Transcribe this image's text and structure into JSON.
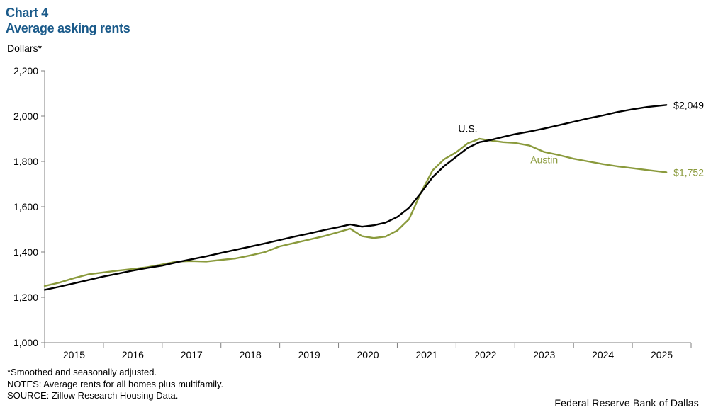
{
  "header": {
    "chart_number": "Chart 4",
    "title": "Average asking rents",
    "unit_label": "Dollars*"
  },
  "footer": {
    "note1": "*Smoothed and seasonally adjusted.",
    "note2": "NOTES: Average rents for all homes plus multifamily.",
    "note3": "SOURCE: Zillow Research Housing Data.",
    "credit": "Federal Reserve Bank of Dallas"
  },
  "chart_data": {
    "type": "line",
    "title": "Average asking rents",
    "ylabel": "Dollars*",
    "ylim": [
      1000,
      2200
    ],
    "yticks": [
      1000,
      1200,
      1400,
      1600,
      1800,
      2000,
      2200
    ],
    "ytick_labels": [
      "1,000",
      "1,200",
      "1,400",
      "1,600",
      "1,800",
      "2,000",
      "2,200"
    ],
    "xlim": [
      2015.0,
      2026.0
    ],
    "xtick_labels": [
      "2015",
      "2016",
      "2017",
      "2018",
      "2019",
      "2020",
      "2021",
      "2022",
      "2023",
      "2024",
      "2025"
    ],
    "grid": false,
    "colors": {
      "us": "#000000",
      "austin": "#8a9a3c",
      "title": "#1a5a8a",
      "axis": "#7f7f7f"
    },
    "series": [
      {
        "name": "U.S.",
        "end_label": "$2,049",
        "x": [
          2015.0,
          2015.25,
          2015.5,
          2015.75,
          2016.0,
          2016.25,
          2016.5,
          2016.75,
          2017.0,
          2017.25,
          2017.5,
          2017.75,
          2018.0,
          2018.25,
          2018.5,
          2018.75,
          2019.0,
          2019.25,
          2019.5,
          2019.75,
          2020.0,
          2020.2,
          2020.4,
          2020.6,
          2020.8,
          2021.0,
          2021.2,
          2021.4,
          2021.6,
          2021.8,
          2022.0,
          2022.2,
          2022.4,
          2022.6,
          2022.8,
          2023.0,
          2023.25,
          2023.5,
          2023.75,
          2024.0,
          2024.25,
          2024.5,
          2024.75,
          2025.0,
          2025.25,
          2025.58
        ],
        "values": [
          1233,
          1247,
          1262,
          1277,
          1292,
          1305,
          1318,
          1330,
          1340,
          1355,
          1368,
          1381,
          1396,
          1410,
          1424,
          1438,
          1453,
          1468,
          1482,
          1497,
          1510,
          1522,
          1512,
          1518,
          1530,
          1555,
          1595,
          1660,
          1730,
          1780,
          1820,
          1860,
          1885,
          1895,
          1908,
          1920,
          1932,
          1945,
          1960,
          1975,
          1990,
          2003,
          2018,
          2030,
          2040,
          2049
        ]
      },
      {
        "name": "Austin",
        "end_label": "$1,752",
        "x": [
          2015.0,
          2015.25,
          2015.5,
          2015.75,
          2016.0,
          2016.25,
          2016.5,
          2016.75,
          2017.0,
          2017.25,
          2017.5,
          2017.75,
          2018.0,
          2018.25,
          2018.5,
          2018.75,
          2019.0,
          2019.25,
          2019.5,
          2019.75,
          2020.0,
          2020.2,
          2020.4,
          2020.6,
          2020.8,
          2021.0,
          2021.2,
          2021.4,
          2021.6,
          2021.8,
          2022.0,
          2022.2,
          2022.4,
          2022.6,
          2022.8,
          2023.0,
          2023.25,
          2023.5,
          2023.75,
          2024.0,
          2024.25,
          2024.5,
          2024.75,
          2025.0,
          2025.25,
          2025.58
        ],
        "values": [
          1250,
          1265,
          1285,
          1302,
          1310,
          1318,
          1325,
          1333,
          1345,
          1358,
          1360,
          1358,
          1365,
          1372,
          1385,
          1400,
          1425,
          1440,
          1455,
          1470,
          1488,
          1503,
          1470,
          1462,
          1468,
          1495,
          1545,
          1660,
          1760,
          1810,
          1840,
          1880,
          1900,
          1892,
          1885,
          1882,
          1870,
          1842,
          1828,
          1812,
          1800,
          1788,
          1778,
          1770,
          1762,
          1752
        ]
      }
    ],
    "annotations": [
      {
        "text": "U.S.",
        "series": "U.S."
      },
      {
        "text": "Austin",
        "series": "Austin"
      }
    ]
  }
}
